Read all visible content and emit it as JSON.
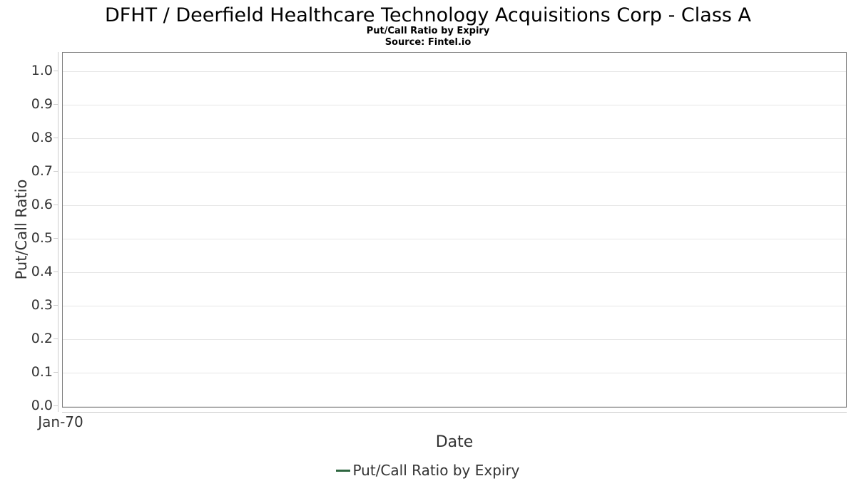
{
  "chart": {
    "title": "DFHT / Deerfield Healthcare Technology Acquisitions Corp - Class A",
    "subtitle": "Put/Call Ratio by Expiry",
    "source": "Source: Fintel.io",
    "y_axis_title": "Put/Call Ratio",
    "x_axis_title": "Date",
    "legend": {
      "label": "Put/Call Ratio by Expiry",
      "marker_color": "#2e6640"
    },
    "colors": {
      "plot_border": "#7f7f7f",
      "gridline": "#e6e6e6",
      "axis_line": "#cccccc",
      "tick_text": "#333333",
      "title_text": "#000000"
    }
  },
  "chart_data": {
    "type": "line",
    "title": "DFHT / Deerfield Healthcare Technology Acquisitions Corp - Class A",
    "subtitle": "Put/Call Ratio by Expiry",
    "source": "Source: Fintel.io",
    "xlabel": "Date",
    "ylabel": "Put/Call Ratio",
    "x_ticks": [
      "Jan-70"
    ],
    "y_ticks": [
      1.0,
      0.9,
      0.8,
      0.7,
      0.6,
      0.5,
      0.4,
      0.3,
      0.2,
      0.1,
      0.0
    ],
    "y_tick_labels": [
      "1.0",
      "0.9",
      "0.8",
      "0.7",
      "0.6",
      "0.5",
      "0.4",
      "0.3",
      "0.2",
      "0.1",
      "0.0"
    ],
    "ylim": [
      0,
      1.055
    ],
    "grid": true,
    "legend_position": "bottom",
    "series": [
      {
        "name": "Put/Call Ratio by Expiry",
        "color": "#2e6640",
        "x": [],
        "y": []
      }
    ]
  }
}
